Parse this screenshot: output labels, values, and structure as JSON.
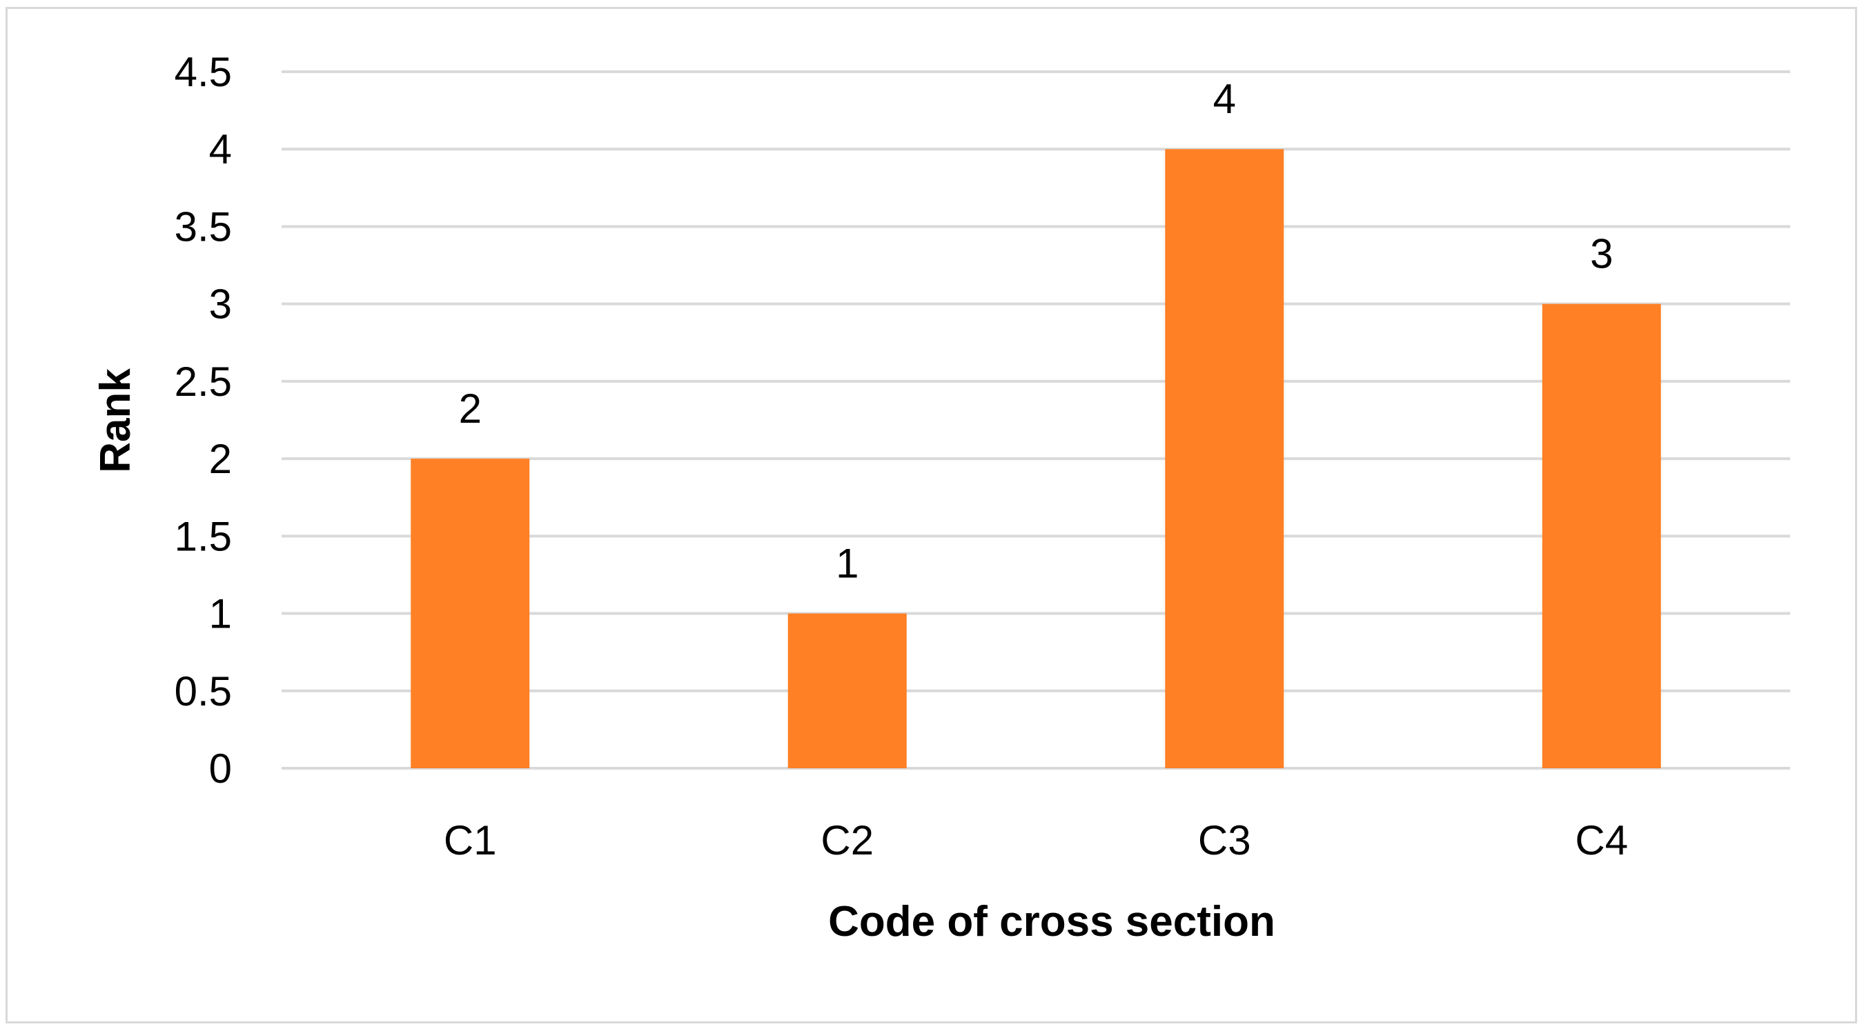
{
  "chart_data": {
    "type": "bar",
    "categories": [
      "C1",
      "C2",
      "C3",
      "C4"
    ],
    "values": [
      2,
      1,
      4,
      3
    ],
    "data_labels": [
      "2",
      "1",
      "4",
      "3"
    ],
    "title": "",
    "xlabel": "Code of cross section",
    "ylabel": "Rank",
    "ylim": [
      0,
      4.5
    ],
    "yticks": [
      0,
      0.5,
      1,
      1.5,
      2,
      2.5,
      3,
      3.5,
      4,
      4.5
    ],
    "ytick_labels": [
      "0",
      "0.5",
      "1",
      "1.5",
      "2",
      "2.5",
      "3",
      "3.5",
      "4",
      "4.5"
    ],
    "grid": "horizontal",
    "legend": "none",
    "bar_color": "#FF8025",
    "grid_color": "#D9D9D9"
  }
}
